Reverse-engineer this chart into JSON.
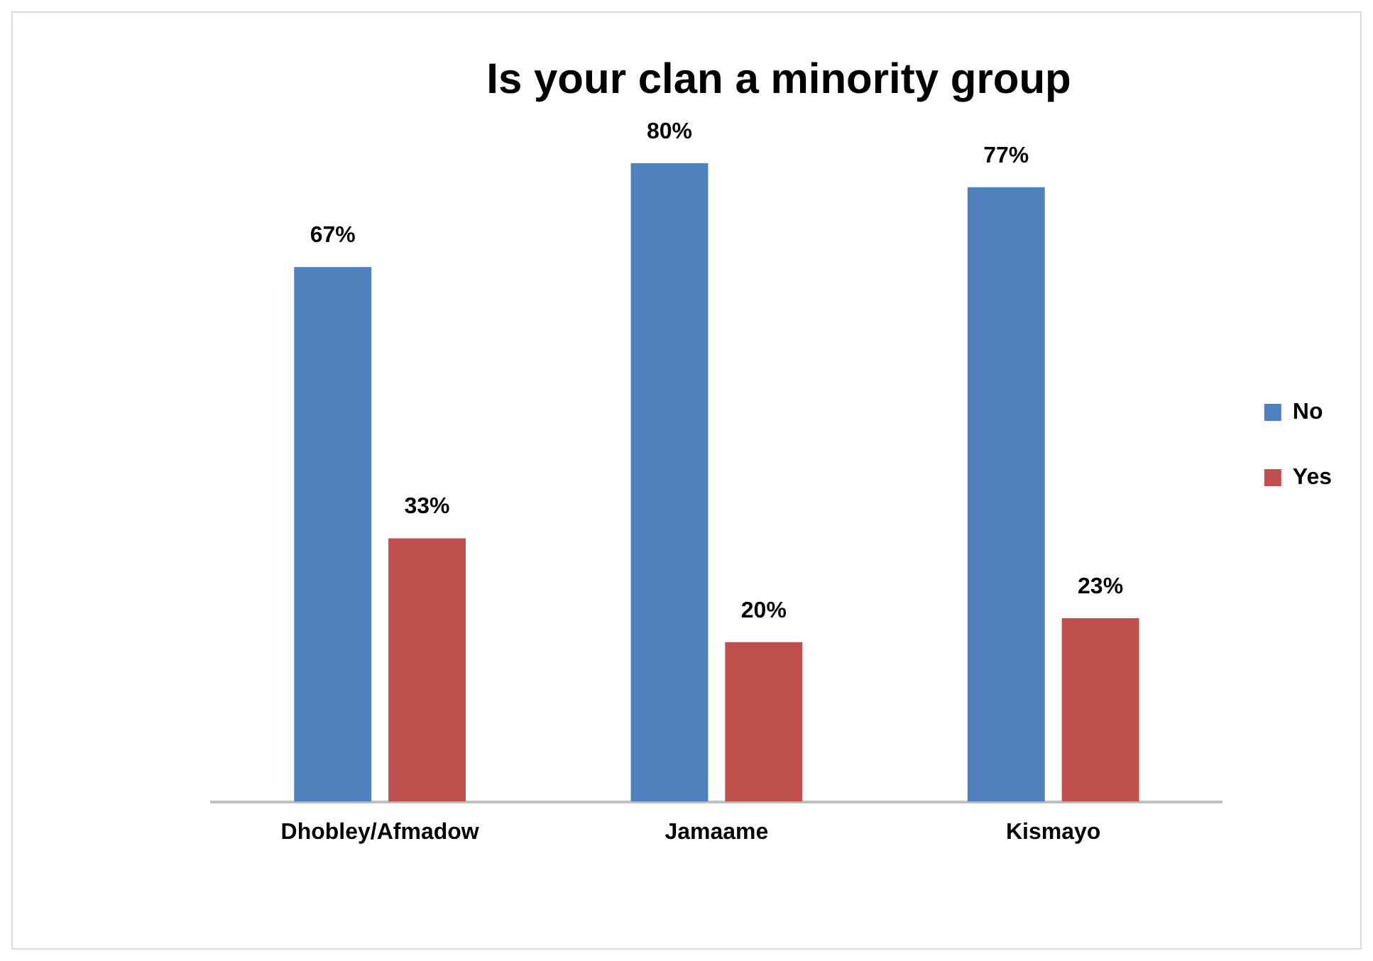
{
  "chart_data": {
    "type": "bar",
    "title": "Is your clan a minority group",
    "categories": [
      "Dhobley/Afmadow",
      "Jamaame",
      "Kismayo"
    ],
    "series": [
      {
        "name": "No",
        "color": "#4f81bd",
        "values": [
          67,
          80,
          77
        ],
        "value_labels": [
          "67%",
          "80%",
          "77%"
        ]
      },
      {
        "name": "Yes",
        "color": "#c0504d",
        "values": [
          33,
          20,
          23
        ],
        "value_labels": [
          "33%",
          "20%",
          "23%"
        ]
      }
    ],
    "legend": "right",
    "grid": false,
    "tick_labels": "x"
  }
}
